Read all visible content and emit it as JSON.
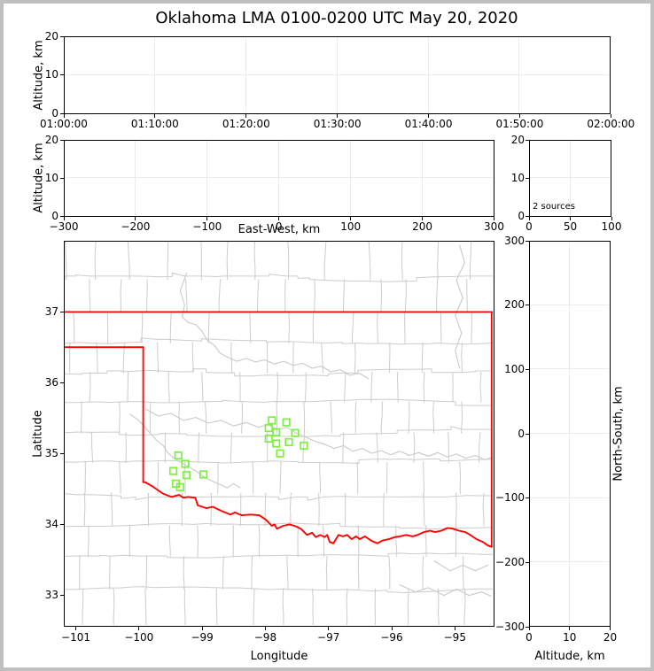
{
  "title": "Oklahoma LMA 0100-0200 UTC May 20, 2020",
  "colors": {
    "background": "#ffffff",
    "frame": "#c0c0c0",
    "axis": "#000000",
    "grid": "#ebebeb",
    "state_border": "#ff0000",
    "county": "#cccccc",
    "river": "#c9c9c9",
    "station": "#7af23c",
    "text": "#000000"
  },
  "chart_data": [
    {
      "type": "scatter",
      "name": "time_height",
      "ylabel": "Altitude, km",
      "xtick_labels": [
        "01:00:00",
        "01:10:00",
        "01:20:00",
        "01:30:00",
        "01:40:00",
        "01:50:00",
        "02:00:00"
      ],
      "yticks": [
        0,
        10,
        20
      ],
      "ytick_labels": [
        "0",
        "10",
        "20"
      ],
      "ylim": [
        0,
        20
      ],
      "points": []
    },
    {
      "type": "scatter",
      "name": "ew_height",
      "xlabel": "East-West, km",
      "ylabel": "Altitude, km",
      "xticks": [
        -300,
        -200,
        -100,
        0,
        100,
        200,
        300
      ],
      "xtick_labels": [
        "−300",
        "−200",
        "−100",
        "0",
        "100",
        "200",
        "300"
      ],
      "xlim": [
        -300,
        300
      ],
      "yticks": [
        0,
        10,
        20
      ],
      "ytick_labels": [
        "0",
        "10",
        "20"
      ],
      "ylim": [
        0,
        20
      ],
      "points": []
    },
    {
      "type": "histogram",
      "name": "source_count_histogram",
      "annotation": "2 sources",
      "xticks": [
        0,
        50,
        100
      ],
      "xtick_labels": [
        "0",
        "50",
        "100"
      ],
      "xlim": [
        0,
        100
      ],
      "yticks": [
        0,
        10,
        20
      ],
      "ytick_labels": [
        "0",
        "10",
        "20"
      ],
      "ylim": [
        0,
        20
      ],
      "values": []
    },
    {
      "type": "scatter",
      "name": "plan_view_map",
      "xlabel": "Longitude",
      "ylabel": "Latitude",
      "xticks": [
        -101,
        -100,
        -99,
        -98,
        -97,
        -96,
        -95
      ],
      "xtick_labels": [
        "−101",
        "−100",
        "−99",
        "−98",
        "−97",
        "−96",
        "−95"
      ],
      "xlim": [
        -101.19,
        -94.38
      ],
      "yticks": [
        33,
        34,
        35,
        36,
        37
      ],
      "ytick_labels": [
        "33",
        "34",
        "35",
        "36",
        "37"
      ],
      "ylim": [
        32.55,
        38.0
      ],
      "stations": [
        [
          -97.89,
          35.46
        ],
        [
          -97.66,
          35.43
        ],
        [
          -97.94,
          35.35
        ],
        [
          -97.82,
          35.29
        ],
        [
          -97.52,
          35.28
        ],
        [
          -97.94,
          35.2
        ],
        [
          -97.82,
          35.13
        ],
        [
          -97.62,
          35.15
        ],
        [
          -97.38,
          35.1
        ],
        [
          -97.76,
          34.99
        ],
        [
          -99.38,
          34.96
        ],
        [
          -99.27,
          34.84
        ],
        [
          -99.46,
          34.74
        ],
        [
          -99.25,
          34.68
        ],
        [
          -98.98,
          34.69
        ],
        [
          -99.42,
          34.56
        ],
        [
          -99.35,
          34.51
        ]
      ]
    },
    {
      "type": "scatter",
      "name": "ns_height",
      "xlabel": "Altitude, km",
      "ylabel": "North-South, km",
      "xticks": [
        0,
        10,
        20
      ],
      "xtick_labels": [
        "0",
        "10",
        "20"
      ],
      "xlim": [
        0,
        20
      ],
      "yticks": [
        300,
        200,
        100,
        0,
        -100,
        -200,
        -300
      ],
      "ytick_labels": [
        "300",
        "200",
        "100",
        "0",
        "−100",
        "−200",
        "−300"
      ],
      "ylim": [
        -300,
        300
      ],
      "points": []
    }
  ],
  "map_layers": {
    "county_seed": 13,
    "county_rows": [
      38.0,
      37.46,
      37.0,
      36.56,
      36.14,
      35.72,
      35.28,
      34.86,
      34.42,
      33.96,
      33.52,
      33.06,
      32.55
    ],
    "state_border": [
      [
        [
          -101.19,
          37.0
        ],
        [
          -94.38,
          37.0
        ]
      ],
      [
        [
          -101.19,
          36.5
        ],
        [
          -99.94,
          36.5
        ]
      ],
      [
        [
          -99.94,
          36.5
        ],
        [
          -99.94,
          34.58
        ]
      ],
      [
        [
          -94.39,
          37.0
        ],
        [
          -94.39,
          33.66
        ]
      ]
    ],
    "red_river": [
      [
        -99.94,
        34.58
      ],
      [
        -99.91,
        34.58
      ],
      [
        -99.79,
        34.52
      ],
      [
        -99.63,
        34.42
      ],
      [
        -99.49,
        34.37
      ],
      [
        -99.37,
        34.4
      ],
      [
        -99.3,
        34.36
      ],
      [
        -99.23,
        34.37
      ],
      [
        -99.11,
        34.36
      ],
      [
        -99.07,
        34.25
      ],
      [
        -98.93,
        34.21
      ],
      [
        -98.83,
        34.23
      ],
      [
        -98.69,
        34.17
      ],
      [
        -98.55,
        34.12
      ],
      [
        -98.48,
        34.15
      ],
      [
        -98.37,
        34.11
      ],
      [
        -98.23,
        34.12
      ],
      [
        -98.09,
        34.11
      ],
      [
        -97.99,
        34.05
      ],
      [
        -97.89,
        33.96
      ],
      [
        -97.85,
        33.98
      ],
      [
        -97.81,
        33.92
      ],
      [
        -97.71,
        33.96
      ],
      [
        -97.61,
        33.98
      ],
      [
        -97.53,
        33.96
      ],
      [
        -97.43,
        33.92
      ],
      [
        -97.33,
        33.83
      ],
      [
        -97.25,
        33.86
      ],
      [
        -97.19,
        33.8
      ],
      [
        -97.12,
        33.83
      ],
      [
        -97.05,
        33.8
      ],
      [
        -97.01,
        33.83
      ],
      [
        -96.97,
        33.73
      ],
      [
        -96.91,
        33.71
      ],
      [
        -96.87,
        33.77
      ],
      [
        -96.83,
        33.83
      ],
      [
        -96.76,
        33.81
      ],
      [
        -96.69,
        33.83
      ],
      [
        -96.62,
        33.77
      ],
      [
        -96.55,
        33.81
      ],
      [
        -96.49,
        33.77
      ],
      [
        -96.41,
        33.81
      ],
      [
        -96.31,
        33.75
      ],
      [
        -96.21,
        33.71
      ],
      [
        -96.17,
        33.73
      ],
      [
        -96.13,
        33.75
      ],
      [
        -96.03,
        33.77
      ],
      [
        -95.93,
        33.8
      ],
      [
        -95.85,
        33.81
      ],
      [
        -95.75,
        33.83
      ],
      [
        -95.65,
        33.81
      ],
      [
        -95.57,
        33.83
      ],
      [
        -95.47,
        33.87
      ],
      [
        -95.37,
        33.89
      ],
      [
        -95.29,
        33.87
      ],
      [
        -95.19,
        33.89
      ],
      [
        -95.09,
        33.93
      ],
      [
        -95.01,
        33.92
      ],
      [
        -94.91,
        33.89
      ],
      [
        -94.81,
        33.87
      ],
      [
        -94.73,
        33.83
      ],
      [
        -94.63,
        33.77
      ],
      [
        -94.53,
        33.73
      ],
      [
        -94.45,
        33.68
      ],
      [
        -94.39,
        33.66
      ]
    ],
    "rivers": [
      [
        [
          -99.25,
          37.55
        ],
        [
          -99.35,
          37.3
        ],
        [
          -99.28,
          37.1
        ],
        [
          -99.32,
          36.93
        ],
        [
          -99.22,
          36.85
        ],
        [
          -99.1,
          36.82
        ],
        [
          -99.0,
          36.72
        ],
        [
          -98.92,
          36.6
        ],
        [
          -98.8,
          36.52
        ],
        [
          -98.72,
          36.42
        ],
        [
          -98.6,
          36.36
        ],
        [
          -98.45,
          36.3
        ],
        [
          -98.3,
          36.34
        ],
        [
          -98.15,
          36.29
        ],
        [
          -98.0,
          36.32
        ],
        [
          -97.85,
          36.26
        ],
        [
          -97.7,
          36.3
        ],
        [
          -97.55,
          36.24
        ],
        [
          -97.4,
          36.27
        ],
        [
          -97.25,
          36.2
        ],
        [
          -97.1,
          36.23
        ],
        [
          -96.95,
          36.15
        ],
        [
          -96.8,
          36.18
        ],
        [
          -96.65,
          36.1
        ],
        [
          -96.5,
          36.13
        ],
        [
          -96.35,
          36.05
        ]
      ],
      [
        [
          -99.9,
          35.62
        ],
        [
          -99.7,
          35.52
        ],
        [
          -99.5,
          35.56
        ],
        [
          -99.3,
          35.46
        ],
        [
          -99.1,
          35.5
        ],
        [
          -98.9,
          35.42
        ],
        [
          -98.7,
          35.46
        ],
        [
          -98.5,
          35.38
        ],
        [
          -98.3,
          35.43
        ],
        [
          -98.1,
          35.36
        ],
        [
          -97.95,
          35.4
        ],
        [
          -97.8,
          35.33
        ],
        [
          -97.65,
          35.36
        ],
        [
          -97.5,
          35.28
        ],
        [
          -97.35,
          35.22
        ],
        [
          -97.2,
          35.16
        ],
        [
          -97.05,
          35.12
        ],
        [
          -96.9,
          35.06
        ],
        [
          -96.75,
          35.1
        ],
        [
          -96.6,
          35.02
        ],
        [
          -96.45,
          35.06
        ],
        [
          -96.3,
          34.99
        ],
        [
          -96.15,
          35.03
        ],
        [
          -96.0,
          34.97
        ],
        [
          -95.85,
          35.02
        ],
        [
          -95.7,
          34.96
        ],
        [
          -95.55,
          35.0
        ],
        [
          -95.4,
          34.95
        ],
        [
          -95.25,
          35.0
        ],
        [
          -95.1,
          34.94
        ],
        [
          -94.95,
          34.98
        ],
        [
          -94.8,
          34.92
        ],
        [
          -94.65,
          34.96
        ],
        [
          -94.5,
          34.9
        ],
        [
          -94.38,
          34.93
        ]
      ],
      [
        [
          -100.15,
          35.55
        ],
        [
          -100.0,
          35.45
        ],
        [
          -99.85,
          35.3
        ],
        [
          -99.73,
          35.18
        ],
        [
          -99.62,
          35.1
        ],
        [
          -99.55,
          35.0
        ],
        [
          -99.45,
          34.92
        ],
        [
          -99.35,
          34.87
        ],
        [
          -99.22,
          34.8
        ],
        [
          -99.1,
          34.74
        ],
        [
          -98.98,
          34.66
        ],
        [
          -98.85,
          34.6
        ],
        [
          -98.72,
          34.55
        ],
        [
          -98.6,
          34.5
        ],
        [
          -98.5,
          34.56
        ],
        [
          -98.4,
          34.5
        ]
      ],
      [
        [
          -94.9,
          37.95
        ],
        [
          -94.82,
          37.7
        ],
        [
          -94.95,
          37.45
        ],
        [
          -94.85,
          37.2
        ],
        [
          -94.97,
          36.95
        ],
        [
          -94.87,
          36.7
        ],
        [
          -94.97,
          36.45
        ],
        [
          -94.9,
          36.2
        ]
      ],
      [
        [
          -95.85,
          33.12
        ],
        [
          -95.6,
          33.02
        ],
        [
          -95.4,
          33.08
        ],
        [
          -95.15,
          32.97
        ],
        [
          -94.95,
          33.06
        ],
        [
          -94.75,
          32.97
        ],
        [
          -94.55,
          33.02
        ],
        [
          -94.4,
          32.96
        ]
      ],
      [
        [
          -95.3,
          33.46
        ],
        [
          -95.05,
          33.32
        ],
        [
          -94.85,
          33.4
        ],
        [
          -94.65,
          33.32
        ],
        [
          -94.45,
          33.4
        ]
      ]
    ]
  }
}
